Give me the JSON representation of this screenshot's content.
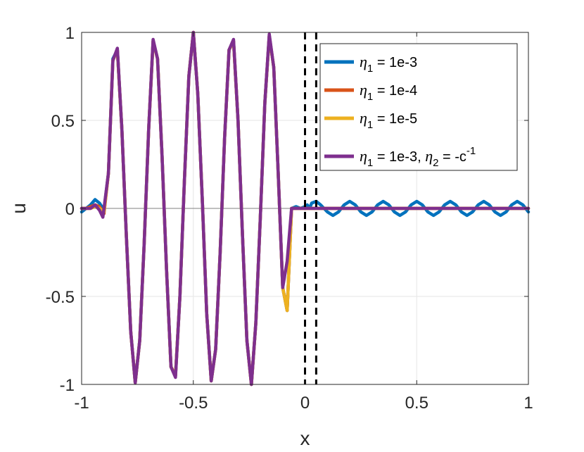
{
  "chart_data": {
    "type": "line",
    "title": "",
    "xlabel": "x",
    "ylabel": "u",
    "xlim": [
      -1,
      1
    ],
    "ylim": [
      -1,
      1
    ],
    "xticks": [
      -1,
      -0.5,
      0,
      0.5,
      1
    ],
    "xtick_labels": [
      "-1",
      "-0.5",
      "0",
      "0.5",
      "1"
    ],
    "yticks": [
      -1,
      -0.5,
      0,
      0.5,
      1
    ],
    "ytick_labels": [
      "-1",
      "-0.5",
      "0",
      "0.5",
      "1"
    ],
    "grid": true,
    "legend_position": "top-right",
    "vertical_dashed_lines_x": [
      0,
      0.05
    ],
    "colors": {
      "axis": "#262626",
      "grid": "#e6e6e6",
      "zero_line": "#7f7f7f",
      "dashed": "#000000"
    },
    "series": [
      {
        "legend": {
          "sym": "η",
          "sub": "1",
          "rest": " = 1e-3"
        },
        "color": "#0072BD",
        "x": [
          -1.0,
          -0.98,
          -0.96,
          -0.94,
          -0.92,
          -0.9,
          -0.88,
          -0.86,
          -0.84,
          -0.82,
          -0.8,
          -0.78,
          -0.76,
          -0.74,
          -0.72,
          -0.7,
          -0.68,
          -0.66,
          -0.64,
          -0.62,
          -0.6,
          -0.58,
          -0.56,
          -0.54,
          -0.52,
          -0.5,
          -0.48,
          -0.46,
          -0.44,
          -0.42,
          -0.4,
          -0.38,
          -0.36,
          -0.34,
          -0.32,
          -0.3,
          -0.28,
          -0.26,
          -0.24,
          -0.22,
          -0.2,
          -0.18,
          -0.16,
          -0.14,
          -0.12,
          -0.1,
          -0.08,
          -0.06,
          -0.04,
          -0.02,
          0.0,
          0.01,
          0.02,
          0.03,
          0.05,
          0.07,
          0.1,
          0.125,
          0.15,
          0.175,
          0.2,
          0.225,
          0.25,
          0.275,
          0.3,
          0.325,
          0.35,
          0.375,
          0.4,
          0.425,
          0.45,
          0.475,
          0.5,
          0.525,
          0.55,
          0.575,
          0.6,
          0.625,
          0.65,
          0.675,
          0.7,
          0.725,
          0.75,
          0.775,
          0.8,
          0.825,
          0.85,
          0.875,
          0.9,
          0.925,
          0.95,
          0.975,
          1.0
        ],
        "y": [
          -0.02,
          0.0,
          0.02,
          0.05,
          0.03,
          -0.01,
          0.2,
          0.85,
          0.9,
          0.45,
          -0.15,
          -0.7,
          -0.99,
          -0.75,
          -0.2,
          0.45,
          0.95,
          0.85,
          0.3,
          -0.35,
          -0.9,
          -0.95,
          -0.5,
          0.15,
          0.75,
          1.0,
          0.65,
          0.05,
          -0.6,
          -0.98,
          -0.8,
          -0.25,
          0.4,
          0.9,
          0.95,
          0.5,
          -0.15,
          -0.75,
          -1.0,
          -0.65,
          -0.05,
          0.6,
          0.98,
          0.8,
          0.2,
          -0.45,
          -0.58,
          0.0,
          0.01,
          0.0,
          0.01,
          0.02,
          0.0,
          0.03,
          0.04,
          0.02,
          -0.02,
          -0.04,
          -0.02,
          0.02,
          0.04,
          0.02,
          -0.02,
          -0.04,
          -0.02,
          0.02,
          0.04,
          0.02,
          -0.02,
          -0.04,
          -0.02,
          0.02,
          0.04,
          0.02,
          -0.02,
          -0.04,
          -0.02,
          0.02,
          0.04,
          0.02,
          -0.02,
          -0.04,
          -0.02,
          0.02,
          0.04,
          0.02,
          -0.02,
          -0.04,
          -0.02,
          0.02,
          0.04,
          0.02,
          -0.02
        ]
      },
      {
        "legend": {
          "sym": "η",
          "sub": "1",
          "rest": " = 1e-4"
        },
        "color": "#D95319",
        "x": [
          -1.0,
          -0.98,
          -0.96,
          -0.94,
          -0.92,
          -0.9,
          -0.88,
          -0.86,
          -0.84,
          -0.82,
          -0.8,
          -0.78,
          -0.76,
          -0.74,
          -0.72,
          -0.7,
          -0.68,
          -0.66,
          -0.64,
          -0.62,
          -0.6,
          -0.58,
          -0.56,
          -0.54,
          -0.52,
          -0.5,
          -0.48,
          -0.46,
          -0.44,
          -0.42,
          -0.4,
          -0.38,
          -0.36,
          -0.34,
          -0.32,
          -0.3,
          -0.28,
          -0.26,
          -0.24,
          -0.22,
          -0.2,
          -0.18,
          -0.16,
          -0.14,
          -0.12,
          -0.1,
          -0.08,
          -0.06,
          -0.04,
          -0.02,
          0.0,
          0.02,
          0.05,
          0.1,
          0.2,
          0.3,
          0.4,
          0.5,
          0.6,
          0.7,
          0.8,
          0.9,
          1.0
        ],
        "y": [
          0.0,
          0.0,
          0.01,
          0.02,
          0.01,
          -0.03,
          0.2,
          0.84,
          0.9,
          0.45,
          -0.15,
          -0.7,
          -0.99,
          -0.75,
          -0.2,
          0.45,
          0.95,
          0.85,
          0.3,
          -0.35,
          -0.9,
          -0.95,
          -0.5,
          0.15,
          0.75,
          1.0,
          0.65,
          0.05,
          -0.6,
          -0.98,
          -0.8,
          -0.25,
          0.4,
          0.9,
          0.95,
          0.5,
          -0.15,
          -0.75,
          -1.0,
          -0.65,
          -0.05,
          0.6,
          0.98,
          0.8,
          0.2,
          -0.45,
          -0.58,
          0.0,
          0.0,
          0.0,
          0.0,
          0.0,
          0.0,
          0.0,
          0.0,
          0.0,
          0.0,
          0.0,
          0.0,
          0.0,
          0.0,
          0.0,
          0.0
        ]
      },
      {
        "legend": {
          "sym": "η",
          "sub": "1",
          "rest": " = 1e-5"
        },
        "color": "#EDB120",
        "x": [
          -1.0,
          -0.98,
          -0.96,
          -0.94,
          -0.92,
          -0.9,
          -0.88,
          -0.86,
          -0.84,
          -0.82,
          -0.8,
          -0.78,
          -0.76,
          -0.74,
          -0.72,
          -0.7,
          -0.68,
          -0.66,
          -0.64,
          -0.62,
          -0.6,
          -0.58,
          -0.56,
          -0.54,
          -0.52,
          -0.5,
          -0.48,
          -0.46,
          -0.44,
          -0.42,
          -0.4,
          -0.38,
          -0.36,
          -0.34,
          -0.32,
          -0.3,
          -0.28,
          -0.26,
          -0.24,
          -0.22,
          -0.2,
          -0.18,
          -0.16,
          -0.14,
          -0.12,
          -0.1,
          -0.08,
          -0.06,
          -0.04,
          -0.02,
          0.0,
          0.02,
          0.05,
          0.1,
          0.2,
          0.3,
          0.4,
          0.5,
          0.6,
          0.7,
          0.8,
          0.9,
          1.0
        ],
        "y": [
          0.0,
          0.0,
          0.0,
          0.01,
          0.0,
          -0.02,
          0.2,
          0.84,
          0.9,
          0.45,
          -0.15,
          -0.7,
          -0.99,
          -0.75,
          -0.2,
          0.45,
          0.95,
          0.85,
          0.3,
          -0.35,
          -0.9,
          -0.95,
          -0.5,
          0.15,
          0.75,
          1.0,
          0.65,
          0.05,
          -0.6,
          -0.98,
          -0.8,
          -0.25,
          0.4,
          0.9,
          0.95,
          0.5,
          -0.15,
          -0.75,
          -1.0,
          -0.65,
          -0.05,
          0.6,
          0.98,
          0.8,
          0.2,
          -0.45,
          -0.58,
          0.0,
          0.0,
          0.0,
          0.0,
          0.0,
          0.0,
          0.0,
          0.0,
          0.0,
          0.0,
          0.0,
          0.0,
          0.0,
          0.0,
          0.0,
          0.0
        ]
      },
      {
        "legend": {
          "sym": "η",
          "sub": "1",
          "rest": " = 1e-3, ",
          "sym2": "η",
          "sub2": "2",
          "rest2": " = -c",
          "sup2": "-1"
        },
        "color": "#7E2F8E",
        "x": [
          -1.0,
          -0.98,
          -0.96,
          -0.94,
          -0.92,
          -0.905,
          -0.9,
          -0.88,
          -0.86,
          -0.84,
          -0.82,
          -0.8,
          -0.78,
          -0.76,
          -0.74,
          -0.72,
          -0.7,
          -0.68,
          -0.66,
          -0.64,
          -0.62,
          -0.6,
          -0.58,
          -0.56,
          -0.54,
          -0.52,
          -0.5,
          -0.48,
          -0.46,
          -0.44,
          -0.42,
          -0.4,
          -0.38,
          -0.36,
          -0.34,
          -0.32,
          -0.3,
          -0.28,
          -0.26,
          -0.24,
          -0.22,
          -0.2,
          -0.18,
          -0.16,
          -0.14,
          -0.12,
          -0.1,
          -0.08,
          -0.06,
          -0.04,
          -0.02,
          -0.005,
          0.0,
          0.01,
          0.03,
          0.05,
          0.1,
          0.2,
          0.3,
          0.4,
          0.5,
          0.6,
          0.7,
          0.8,
          0.9,
          1.0
        ],
        "y": [
          0.0,
          0.0,
          0.0,
          0.02,
          -0.01,
          -0.05,
          0.0,
          0.2,
          0.84,
          0.91,
          0.45,
          -0.15,
          -0.7,
          -0.99,
          -0.75,
          -0.2,
          0.45,
          0.96,
          0.85,
          0.3,
          -0.35,
          -0.9,
          -0.96,
          -0.5,
          0.15,
          0.75,
          1.0,
          0.65,
          0.05,
          -0.6,
          -0.98,
          -0.8,
          -0.25,
          0.4,
          0.9,
          0.96,
          0.5,
          -0.15,
          -0.75,
          -1.0,
          -0.65,
          -0.05,
          0.6,
          0.99,
          0.8,
          0.2,
          -0.45,
          -0.3,
          0.0,
          0.0,
          0.0,
          0.0,
          0.0,
          0.0,
          0.0,
          0.0,
          0.0,
          0.0,
          0.0,
          0.0,
          0.0,
          0.0,
          0.0,
          0.0,
          0.0,
          0.0
        ]
      }
    ]
  }
}
